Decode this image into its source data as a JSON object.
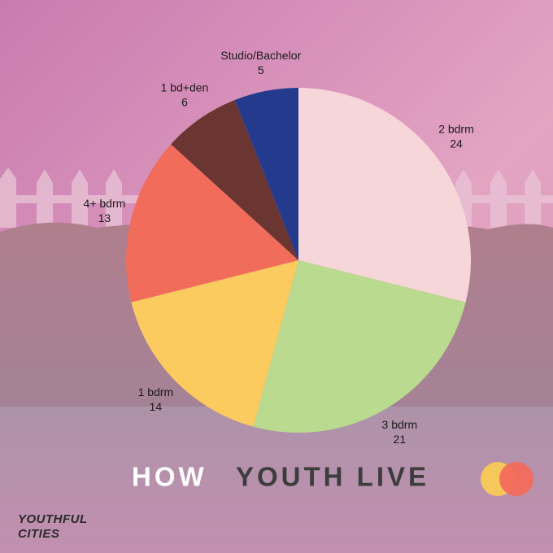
{
  "chart_data": {
    "type": "pie",
    "title_parts": [
      "HOW",
      "YOUTH LIVE"
    ],
    "categories": [
      "2 bdrm",
      "3 bdrm",
      "1 bdrm",
      "4+ bdrm",
      "1 bd+den",
      "Studio/Bachelor"
    ],
    "values": [
      24,
      21,
      14,
      13,
      6,
      5
    ],
    "colors": [
      "#f6d6d9",
      "#badb8f",
      "#fccb60",
      "#f26c5b",
      "#6b3631",
      "#243b8d"
    ]
  },
  "logo": [
    "YOUTHFUL",
    "CITIES"
  ]
}
